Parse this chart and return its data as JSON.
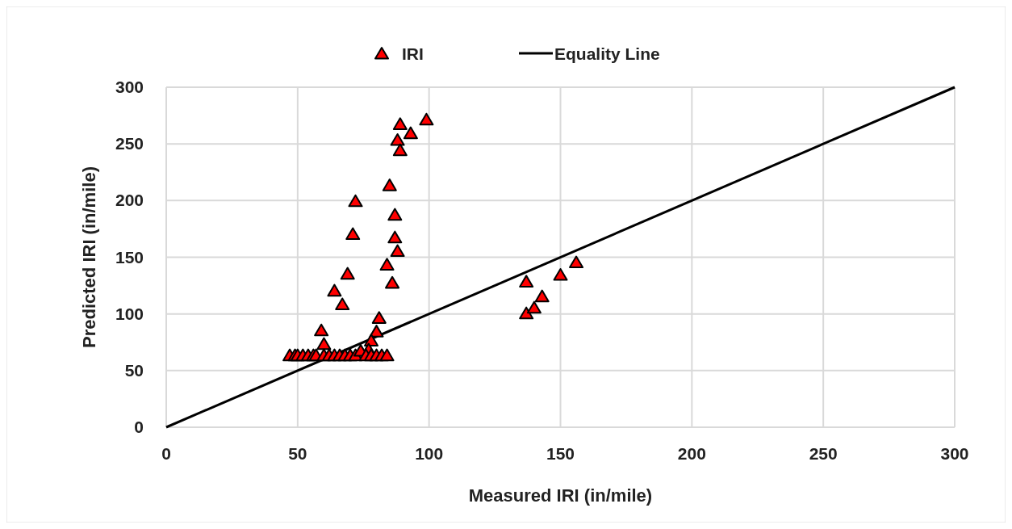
{
  "chart_data": {
    "type": "scatter",
    "xlabel": "Measured IRI (in/mile)",
    "ylabel": "Predicted IRI (in/mile)",
    "xlim": [
      0,
      300
    ],
    "ylim": [
      0,
      300
    ],
    "xticks": [
      0,
      50,
      100,
      150,
      200,
      250,
      300
    ],
    "yticks": [
      0,
      50,
      100,
      150,
      200,
      250,
      300
    ],
    "grid": true,
    "legend": "top",
    "marker": "triangle",
    "series": [
      {
        "name": "IRI",
        "color": "#ff0000",
        "x": [
          99,
          89,
          93,
          88,
          89,
          85,
          72,
          87,
          71,
          87,
          88,
          84,
          69,
          86,
          64,
          67,
          81,
          80,
          78,
          77,
          59,
          60,
          47,
          49,
          50,
          52,
          54,
          56,
          57,
          60,
          62,
          64,
          66,
          68,
          70,
          72,
          74,
          76,
          78,
          80,
          82,
          84,
          137,
          137,
          140,
          143,
          150,
          156
        ],
        "values": [
          271,
          267,
          259,
          253,
          244,
          213,
          199,
          187,
          170,
          167,
          155,
          143,
          135,
          127,
          120,
          108,
          96,
          84,
          76,
          68,
          85,
          73,
          63,
          63,
          63,
          63,
          63,
          63,
          63,
          63,
          63,
          63,
          63,
          63,
          63,
          63,
          67,
          63,
          63,
          63,
          63,
          63,
          128,
          100,
          105,
          115,
          134,
          145
        ]
      },
      {
        "name": "Equality Line",
        "type": "line",
        "color": "#000000",
        "marker": "none",
        "x": [
          0,
          300
        ],
        "values": [
          0,
          300
        ]
      }
    ]
  }
}
